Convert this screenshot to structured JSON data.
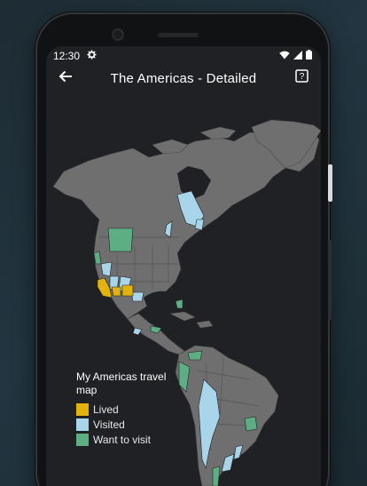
{
  "status": {
    "time": "12:30"
  },
  "appbar": {
    "title": "The Americas - Detailed"
  },
  "legend": {
    "title": "My Americas travel map",
    "items": [
      {
        "label": "Lived",
        "color": "#e3b20b"
      },
      {
        "label": "Visited",
        "color": "#a9d5ea"
      },
      {
        "label": "Want to visit",
        "color": "#5daf83"
      }
    ]
  },
  "colors": {
    "land": "#6f6f6f",
    "background": "#202124"
  }
}
